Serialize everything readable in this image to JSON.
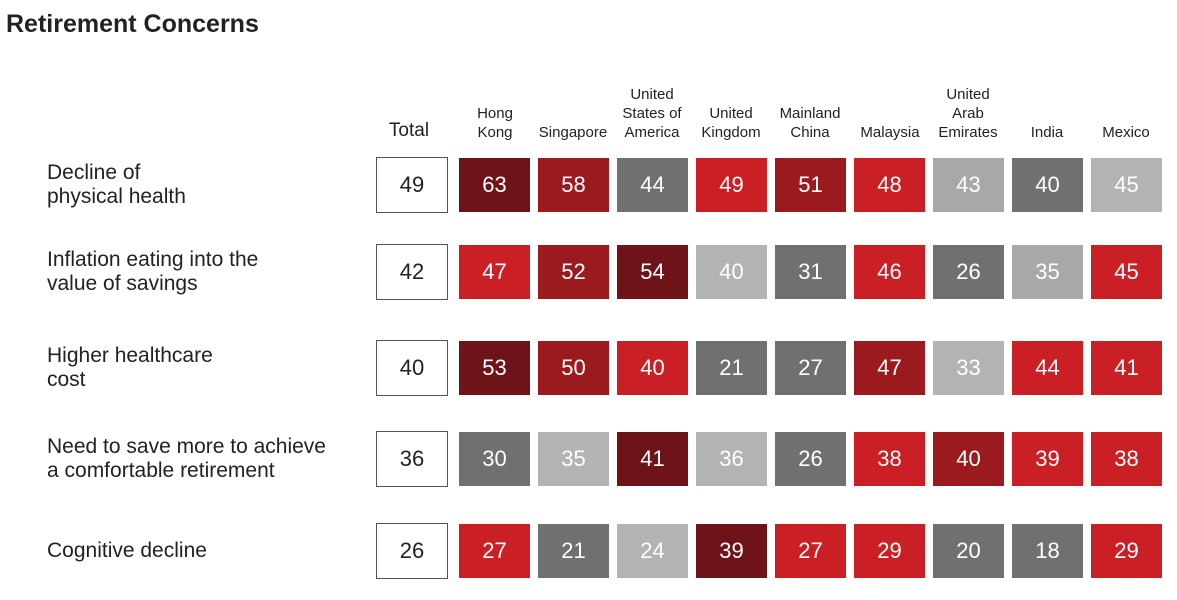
{
  "chart_data": {
    "type": "heatmap",
    "title": "Retirement Concerns",
    "columns": [
      "Total",
      "Hong\nKong",
      "Singapore",
      "United\nStates of\nAmerica",
      "United\nKingdom",
      "Mainland\nChina",
      "Malaysia",
      "United\nArab\nEmirates",
      "India",
      "Mexico"
    ],
    "rows": [
      {
        "label": "Decline of\nphysical health",
        "values": [
          49,
          63,
          58,
          44,
          49,
          51,
          48,
          43,
          40,
          45
        ],
        "colors": [
          "#ffffff",
          "#6e1419",
          "#9b1a1e",
          "#707070",
          "#c91f25",
          "#9b1a1e",
          "#c91f25",
          "#a8a8a8",
          "#707070",
          "#b3b3b3"
        ]
      },
      {
        "label": "Inflation eating into the\nvalue of savings",
        "values": [
          42,
          47,
          52,
          54,
          40,
          31,
          46,
          26,
          35,
          45
        ],
        "colors": [
          "#ffffff",
          "#c91f25",
          "#9b1a1e",
          "#6e1419",
          "#b3b3b3",
          "#707070",
          "#c91f25",
          "#707070",
          "#a8a8a8",
          "#c91f25"
        ]
      },
      {
        "label": "Higher healthcare\ncost",
        "values": [
          40,
          53,
          50,
          40,
          21,
          27,
          47,
          33,
          44,
          41
        ],
        "colors": [
          "#ffffff",
          "#6e1419",
          "#9b1a1e",
          "#c91f25",
          "#707070",
          "#707070",
          "#9b1a1e",
          "#b3b3b3",
          "#c91f25",
          "#c91f25"
        ]
      },
      {
        "label": "Need to save more to achieve\na comfortable retirement",
        "values": [
          36,
          30,
          35,
          41,
          36,
          26,
          38,
          40,
          39,
          38
        ],
        "colors": [
          "#ffffff",
          "#707070",
          "#b3b3b3",
          "#6e1419",
          "#b3b3b3",
          "#707070",
          "#c91f25",
          "#9b1a1e",
          "#c91f25",
          "#c91f25"
        ]
      },
      {
        "label": "Cognitive decline",
        "values": [
          26,
          27,
          21,
          24,
          39,
          27,
          29,
          20,
          18,
          29
        ],
        "colors": [
          "#ffffff",
          "#c91f25",
          "#707070",
          "#b3b3b3",
          "#6e1419",
          "#c91f25",
          "#c91f25",
          "#707070",
          "#707070",
          "#c91f25"
        ]
      }
    ]
  }
}
